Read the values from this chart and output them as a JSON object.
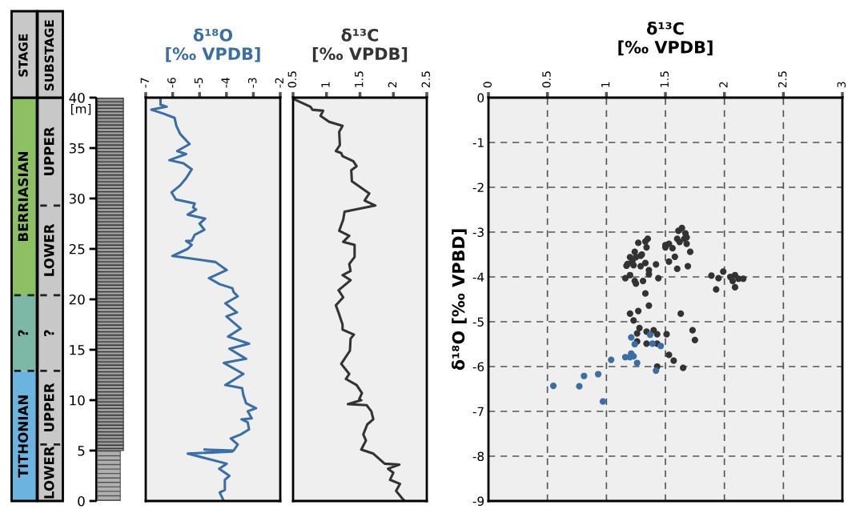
{
  "chart_data": [
    {
      "type": "bar",
      "stacked": true,
      "categories": [
        "STAGE",
        "SUBSTAGE"
      ],
      "ylabel": "[m]",
      "ylim": [
        0,
        40
      ],
      "yticks": [
        0,
        5,
        10,
        15,
        20,
        25,
        30,
        35,
        40
      ],
      "series": [
        {
          "name": "TITHONIAN",
          "color": "#6cb4e0",
          "values": [
            12.9,
            null
          ]
        },
        {
          "name": "?",
          "color": "#7db8a6",
          "values": [
            7.5,
            null
          ]
        },
        {
          "name": "BERRIASIAN",
          "color": "#8cc063",
          "values": [
            19.6,
            null
          ]
        },
        {
          "name": "LOWER",
          "color": "#c8c8c8",
          "values": [
            null,
            5.6
          ]
        },
        {
          "name": "UPPER",
          "color": "#c8c8c8",
          "values": [
            null,
            7.3
          ]
        },
        {
          "name": "?",
          "color": "#c8c8c8",
          "values": [
            null,
            7.5
          ]
        },
        {
          "name": "LOWER",
          "color": "#c8c8c8",
          "values": [
            null,
            8.9
          ]
        },
        {
          "name": "UPPER",
          "color": "#c8c8c8",
          "values": [
            null,
            10.7
          ]
        }
      ]
    },
    {
      "type": "line",
      "title": "δ¹⁸O\n[‰ VPDB]",
      "xlim": [
        -7,
        -2
      ],
      "xticks": [
        -7,
        -6,
        -5,
        -4,
        -3,
        -2
      ],
      "ylim": [
        0,
        40
      ],
      "tick_labels": "x",
      "marker": "none",
      "line_style": "solid",
      "series": [
        {
          "color": "#3a6ea5",
          "x": [
            -6.45,
            -6.45,
            -6.22,
            -6.79,
            -6.33,
            -5.93,
            -5.86,
            -5.72,
            -5.37,
            -5.83,
            -5.5,
            -6.12,
            -5.6,
            -5.29,
            -5.5,
            -5.72,
            -6.04,
            -5.88,
            -5.18,
            -5.24,
            -5.13,
            -5.44,
            -4.79,
            -5.0,
            -4.82,
            -5.18,
            -5.29,
            -5.5,
            -5.29,
            -5.44,
            -6.01,
            -4.41,
            -3.99,
            -4.65,
            -4.25,
            -3.78,
            -3.73,
            -3.58,
            -4.04,
            -3.61,
            -4.0,
            -3.47,
            -3.94,
            -3.16,
            -3.89,
            -3.27,
            -4.1,
            -3.37,
            -4.04,
            -3.42,
            -3.37,
            -3.27,
            -2.9,
            -3.21,
            -3.06,
            -3.44,
            -3.21,
            -3.16,
            -3.47,
            -3.84,
            -3.58,
            -3.73,
            -4.82,
            -3.78,
            -5.44,
            -3.99,
            -4.27,
            -3.89,
            -4.06,
            -4.06,
            -4.25,
            -4.1
          ],
          "values": [
            40,
            39.3,
            39.1,
            38.8,
            38.4,
            38.0,
            37.2,
            36.4,
            35.4,
            34.7,
            34.4,
            33.8,
            33.5,
            32.9,
            32.0,
            31.3,
            30.6,
            29.9,
            29.5,
            29.1,
            28.9,
            28.4,
            28.0,
            27.5,
            26.9,
            26.4,
            25.8,
            25.8,
            25.4,
            25.0,
            24.3,
            23.7,
            22.9,
            22.1,
            21.5,
            21.1,
            20.7,
            20.3,
            19.6,
            18.7,
            18.3,
            17.1,
            16.3,
            15.6,
            15.1,
            14.1,
            13.7,
            12.6,
            11.5,
            11.2,
            10.5,
            9.7,
            9.2,
            8.9,
            8.2,
            8.1,
            7.8,
            7.1,
            6.6,
            6.2,
            5.6,
            5.0,
            5.1,
            4.9,
            4.7,
            3.7,
            3.2,
            2.5,
            2.1,
            1.1,
            0.85,
            0
          ]
        }
      ]
    },
    {
      "type": "line",
      "title": "δ¹³C\n[‰ VPDB]",
      "xlim": [
        0.5,
        2.5
      ],
      "xticks": [
        0.5,
        1,
        1.5,
        2,
        2.5
      ],
      "ylim": [
        0,
        40
      ],
      "tick_labels": "x",
      "marker": "none",
      "line_style": "solid",
      "series": [
        {
          "color": "#333333",
          "x": [
            0.53,
            0.76,
            0.79,
            0.95,
            0.91,
            1.04,
            1.24,
            1.19,
            1.2,
            1.14,
            1.22,
            1.24,
            1.4,
            1.45,
            1.37,
            1.38,
            1.64,
            1.57,
            1.73,
            1.27,
            1.25,
            1.19,
            1.34,
            1.25,
            1.42,
            1.42,
            1.34,
            1.36,
            1.24,
            1.36,
            1.18,
            1.25,
            1.14,
            1.19,
            1.24,
            1.24,
            1.41,
            1.36,
            1.35,
            1.22,
            1.34,
            1.29,
            1.45,
            1.53,
            1.49,
            1.52,
            1.32,
            1.6,
            1.67,
            1.7,
            1.61,
            1.55,
            1.59,
            1.52,
            1.7,
            1.87,
            2.09,
            1.92,
            2.0,
            1.95,
            2.1,
            2.04,
            2.14,
            2.17
          ],
          "values": [
            39.8,
            39.1,
            38.8,
            38.7,
            38.2,
            37.6,
            37.2,
            36.6,
            35.3,
            34.7,
            34.5,
            34.2,
            33.7,
            33.2,
            32.8,
            31.7,
            30.5,
            29.8,
            29.3,
            28.7,
            27.9,
            26.8,
            26.3,
            25.7,
            25.4,
            24.2,
            23.5,
            22.8,
            22.4,
            21.9,
            20.9,
            20.2,
            19.4,
            18.5,
            17.5,
            17.0,
            16.5,
            16.1,
            14.9,
            13.6,
            12.6,
            12.1,
            11.5,
            10.7,
            10.1,
            10.0,
            9.6,
            9.5,
            8.9,
            8.1,
            7.6,
            6.6,
            6.0,
            5.1,
            4.7,
            3.7,
            3.6,
            3.2,
            2.8,
            2.1,
            1.7,
            1.0,
            0.2,
            0
          ]
        }
      ]
    },
    {
      "type": "scatter",
      "title": "δ¹³C\n[‰ VPDB]",
      "ylabel": "δ¹⁸O [‰ VPBD]",
      "xlim": [
        0,
        3
      ],
      "xticks": [
        0,
        0.5,
        1,
        1.5,
        2,
        2.5,
        3
      ],
      "ylim": [
        -9,
        0
      ],
      "yticks": [
        -9,
        -8,
        -7,
        -6,
        -5,
        -4,
        -3,
        -2,
        -1,
        0
      ],
      "grid": true,
      "marker": "circle",
      "series": [
        {
          "color": "#333333",
          "x": [
            1.16,
            1.18,
            1.2,
            1.17,
            1.22,
            1.24,
            1.25,
            1.23,
            1.2,
            1.24,
            1.25,
            1.27,
            1.29,
            1.3,
            1.29,
            1.31,
            1.33,
            1.33,
            1.35,
            1.34,
            1.36,
            1.36,
            1.42,
            1.44,
            1.5,
            1.5,
            1.53,
            1.56,
            1.53,
            1.58,
            1.6,
            1.6,
            1.61,
            1.64,
            1.62,
            1.66,
            1.67,
            1.68,
            1.68,
            1.71,
            1.69,
            1.89,
            1.95,
            1.93,
            1.33,
            1.36,
            1.2,
            1.27,
            1.23,
            1.28,
            1.26,
            1.26,
            1.34,
            1.4,
            1.43,
            1.34,
            1.43,
            1.51,
            1.63,
            1.73,
            1.75,
            1.53,
            1.57,
            1.65,
            1.43,
            1.99,
            2.05,
            2.09,
            2.12,
            2.16,
            2.09,
            2.07
          ],
          "values": [
            -4.03,
            -3.71,
            -3.56,
            -3.75,
            -3.65,
            -3.44,
            -3.56,
            -3.74,
            -3.96,
            -4.09,
            -4.15,
            -3.24,
            -3.53,
            -3.5,
            -3.76,
            -4.09,
            -3.69,
            -3.21,
            -3.15,
            -3.34,
            -3.85,
            -3.94,
            -3.72,
            -4.03,
            -3.29,
            -3.34,
            -3.26,
            -3.36,
            -3.66,
            -3.55,
            -3.15,
            -3.82,
            -2.97,
            -2.91,
            -3.22,
            -3.15,
            -3.03,
            -3.12,
            -3.26,
            -3.44,
            -3.76,
            -3.97,
            -4.03,
            -4.28,
            -4.37,
            -4.64,
            -4.82,
            -4.76,
            -4.97,
            -5.14,
            -5.26,
            -5.44,
            -5.22,
            -5.19,
            -5.28,
            -5.49,
            -5.49,
            -5.28,
            -4.82,
            -5.19,
            -5.41,
            -5.74,
            -5.87,
            -6.03,
            -6.0,
            -3.88,
            -4.0,
            -3.96,
            -4.04,
            -4.04,
            -4.23,
            -4.09
          ]
        },
        {
          "color": "#3a6ea5",
          "x": [
            0.55,
            0.77,
            0.81,
            0.93,
            0.97,
            1.04,
            1.16,
            1.2,
            1.21,
            1.23,
            1.26,
            1.21,
            1.24,
            1.37,
            1.39,
            1.46,
            1.42
          ],
          "values": [
            -6.43,
            -6.44,
            -6.21,
            -6.17,
            -6.78,
            -5.85,
            -5.79,
            -5.79,
            -5.71,
            -5.77,
            -5.92,
            -5.35,
            -5.5,
            -5.29,
            -5.49,
            -5.54,
            -6.09
          ]
        }
      ]
    }
  ]
}
